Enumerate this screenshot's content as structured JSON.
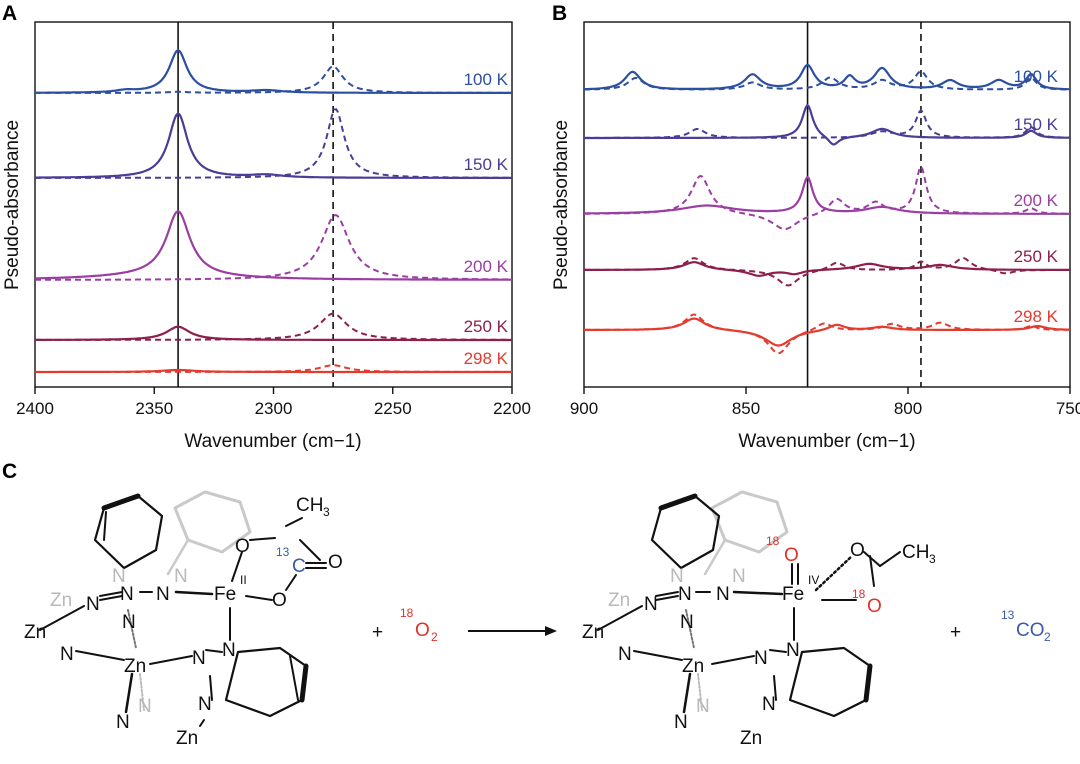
{
  "panels": {
    "a": "A",
    "b": "B",
    "c": "C"
  },
  "chart_data": [
    {
      "type": "line",
      "panel": "A",
      "xlabel": "Wavenumber (cm−1)",
      "ylabel": "Pseudo-absorbance",
      "xlim": [
        2400,
        2200
      ],
      "x_ticks": [
        2400,
        2350,
        2300,
        2250,
        2200
      ],
      "reference_lines": [
        {
          "x": 2340,
          "style": "solid"
        },
        {
          "x": 2275,
          "style": "dashed"
        }
      ],
      "series": [
        {
          "name": "100 K",
          "color": "#2d4fa0",
          "baseline": 4.0,
          "solid_peaks": [
            [
              2340,
              1.25,
              4.5
            ],
            [
              2362,
              0.06,
              5
            ],
            [
              2303,
              0.07,
              8
            ]
          ],
          "dashed_peaks": [
            [
              2275,
              0.78,
              5
            ],
            [
              2340,
              0.03,
              6
            ]
          ]
        },
        {
          "name": "150 K",
          "color": "#4b3c96",
          "baseline": 3.0,
          "solid_peaks": [
            [
              2340,
              1.4,
              4.8
            ],
            [
              2303,
              0.06,
              8
            ]
          ],
          "dashed_peaks": [
            [
              2274,
              1.5,
              4.5
            ]
          ]
        },
        {
          "name": "200 K",
          "color": "#9b3ea3",
          "baseline": 2.0,
          "solid_peaks": [
            [
              2340,
              1.3,
              6
            ],
            [
              2348,
              0.08,
              30
            ]
          ],
          "dashed_peaks": [
            [
              2274,
              1.3,
              7
            ]
          ]
        },
        {
          "name": "250 K",
          "color": "#8c1f4d",
          "baseline": 1.0,
          "solid_peaks": [
            [
              2340,
              0.3,
              6
            ]
          ],
          "dashed_peaks": [
            [
              2275,
              0.6,
              7
            ]
          ]
        },
        {
          "name": "298 K",
          "color": "#e33b2e",
          "baseline": 0.0,
          "solid_peaks": [
            [
              2340,
              0.06,
              8
            ]
          ],
          "dashed_peaks": [
            [
              2275,
              0.2,
              7
            ]
          ]
        }
      ]
    },
    {
      "type": "line",
      "panel": "B",
      "xlabel": "Wavenumber (cm−1)",
      "ylabel": "Pseudo-absorbance",
      "xlim": [
        900,
        750
      ],
      "x_ticks": [
        900,
        850,
        800,
        750
      ],
      "reference_lines": [
        {
          "x": 831,
          "style": "solid"
        },
        {
          "x": 796,
          "style": "dashed"
        }
      ],
      "series": [
        {
          "name": "100 K",
          "color": "#2d4fa0",
          "baseline": 4.0,
          "solid_peaks": [
            [
              885,
              0.3,
              3
            ],
            [
              848,
              0.25,
              3
            ],
            [
              831,
              0.4,
              2.5
            ],
            [
              818,
              0.2,
              2
            ],
            [
              808,
              0.35,
              3
            ],
            [
              787,
              0.15,
              3
            ],
            [
              772,
              0.15,
              3
            ],
            [
              762,
              0.25,
              2
            ]
          ],
          "dashed_peaks": [
            [
              884,
              0.2,
              3
            ],
            [
              848,
              0.12,
              3
            ],
            [
              824,
              0.2,
              3
            ],
            [
              808,
              0.15,
              3
            ],
            [
              796,
              0.3,
              2.5
            ],
            [
              762,
              0.2,
              2
            ]
          ]
        },
        {
          "name": "150 K",
          "color": "#4b3c96",
          "baseline": 3.0,
          "solid_peaks": [
            [
              831,
              0.55,
              2
            ],
            [
              823,
              -0.15,
              2
            ],
            [
              808,
              0.15,
              4
            ],
            [
              762,
              0.12,
              2
            ]
          ],
          "dashed_peaks": [
            [
              865,
              0.15,
              3
            ],
            [
              808,
              0.1,
              4
            ],
            [
              796,
              0.45,
              2
            ],
            [
              762,
              0.18,
              2
            ]
          ]
        },
        {
          "name": "200 K",
          "color": "#9b3ea3",
          "baseline": 2.0,
          "solid_peaks": [
            [
              862,
              0.15,
              10
            ],
            [
              831,
              0.65,
              2
            ],
            [
              808,
              0.12,
              6
            ]
          ],
          "dashed_peaks": [
            [
              864,
              0.7,
              3.5
            ],
            [
              838,
              -0.3,
              5
            ],
            [
              822,
              0.28,
              3
            ],
            [
              810,
              0.2,
              3
            ],
            [
              796,
              0.85,
              2
            ],
            [
              762,
              0.1,
              2
            ]
          ]
        },
        {
          "name": "250 K",
          "color": "#8c1f4d",
          "baseline": 1.0,
          "solid_peaks": [
            [
              866,
              0.2,
              4
            ],
            [
              846,
              -0.15,
              4
            ],
            [
              835,
              -0.1,
              3
            ],
            [
              812,
              0.15,
              5
            ],
            [
              790,
              0.12,
              5
            ]
          ],
          "dashed_peaks": [
            [
              866,
              0.3,
              3.5
            ],
            [
              837,
              -0.4,
              4
            ],
            [
              822,
              0.2,
              3
            ],
            [
              796,
              0.2,
              2
            ],
            [
              783,
              0.3,
              3
            ],
            [
              770,
              -0.1,
              3
            ]
          ]
        },
        {
          "name": "298 K",
          "color": "#e33b2e",
          "baseline": 0.0,
          "solid_peaks": [
            [
              866,
              0.3,
              4
            ],
            [
              840,
              -0.4,
              5
            ],
            [
              822,
              0.15,
              3
            ],
            [
              808,
              0.08,
              4
            ],
            [
              760,
              0.1,
              3
            ]
          ],
          "dashed_peaks": [
            [
              866,
              0.4,
              3.5
            ],
            [
              840,
              -0.6,
              4
            ],
            [
              826,
              0.2,
              3
            ],
            [
              805,
              0.15,
              3
            ],
            [
              790,
              0.18,
              3
            ],
            [
              762,
              0.1,
              2
            ]
          ]
        }
      ]
    }
  ],
  "scheme": {
    "plus": "+",
    "reactant_left": {
      "fe": "Fe",
      "fe_ox": "II",
      "ch3": "CH",
      "ch3_sub": "3",
      "c13_sup": "13",
      "c13": "C",
      "o_top": "O",
      "o_mid": "O",
      "o_low": "O",
      "n": "N",
      "zn": "Zn"
    },
    "o2": {
      "sup": "18",
      "base": "O",
      "sub": "2"
    },
    "product": {
      "fe": "Fe",
      "fe_ox": "IV",
      "o_sup": "18",
      "o": "O",
      "o2_sup": "18",
      "o2": "O",
      "o_ac": "O",
      "ch3": "CH",
      "ch3_sub": "3",
      "n": "N",
      "zn": "Zn"
    },
    "co2": {
      "sup": "13",
      "base": "CO",
      "sub": "2"
    }
  }
}
